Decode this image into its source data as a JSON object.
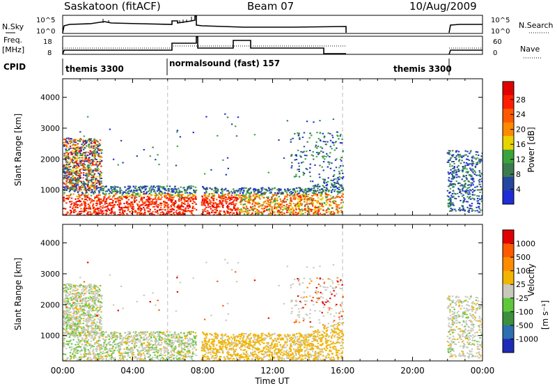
{
  "header": {
    "station": "Saskatoon (fitACF)",
    "beam": "Beam 07",
    "date": "10/Aug/2009"
  },
  "strips": {
    "nsky_label": "N.Sky",
    "nsky_ticks": [
      "10^5",
      "10^0"
    ],
    "nsearch_label": "N.Search",
    "nsearch_ticks": [
      "10^5",
      "10^0"
    ],
    "freq_label_1": "Freq.",
    "freq_label_2": "[MHz]",
    "freq_ticks": [
      "18",
      "8"
    ],
    "nave_label": "Nave",
    "nave_ticks": [
      "60",
      "0"
    ],
    "cpid_label": "CPID",
    "cpid_segments": [
      "themis 3300",
      "normalsound (fast) 157",
      "themis 3300"
    ]
  },
  "time_axis": {
    "label": "Time UT",
    "ticks": [
      "00:00",
      "04:00",
      "08:00",
      "12:00",
      "16:00",
      "20:00",
      "00:00"
    ]
  },
  "chart_data": [
    {
      "type": "heatmap",
      "title": "",
      "xlabel": "Time UT",
      "ylabel": "Slant Range [km]",
      "xlim_hours": [
        0,
        24
      ],
      "ylim": [
        180,
        4600
      ],
      "y_ticks": [
        "1000",
        "2000",
        "3000",
        "4000"
      ],
      "colorbar_label": "Power [dB]",
      "colorbar_ticks": [
        "4",
        "8",
        "12",
        "16",
        "20",
        "24",
        "28"
      ],
      "colors": [
        "#1e2dd6",
        "#2446a0",
        "#3c7a50",
        "#3aa33c",
        "#e8d400",
        "#ff8a00",
        "#ff5a00",
        "#ff1e00",
        "#e10000"
      ],
      "data_gaps_hours": [
        [
          6.0,
          6.0
        ],
        [
          7.6,
          7.9
        ],
        [
          16.0,
          21.9
        ]
      ],
      "mode_change_hours": [
        6.0,
        16.0
      ]
    },
    {
      "type": "heatmap",
      "title": "",
      "xlabel": "Time UT",
      "ylabel": "Slant Range [km]",
      "xlim_hours": [
        0,
        24
      ],
      "ylim": [
        180,
        4600
      ],
      "y_ticks": [
        "1000",
        "2000",
        "3000",
        "4000"
      ],
      "colorbar_label": "Velocity",
      "colorbar_unit": "[m s⁻¹]",
      "colorbar_ticks": [
        "1000",
        "500",
        "100",
        "25",
        "-25",
        "-100",
        "-500",
        "-1000"
      ],
      "colors": [
        "#1e2bb5",
        "#2d6fb0",
        "#3d8f3d",
        "#5fc83a",
        "#c8c8bc",
        "#f2b400",
        "#ff8c00",
        "#ff5a00",
        "#e10000"
      ],
      "data_gaps_hours": [
        [
          7.6,
          7.9
        ],
        [
          16.0,
          21.9
        ]
      ],
      "mode_change_hours": [
        6.0,
        16.0
      ]
    }
  ]
}
